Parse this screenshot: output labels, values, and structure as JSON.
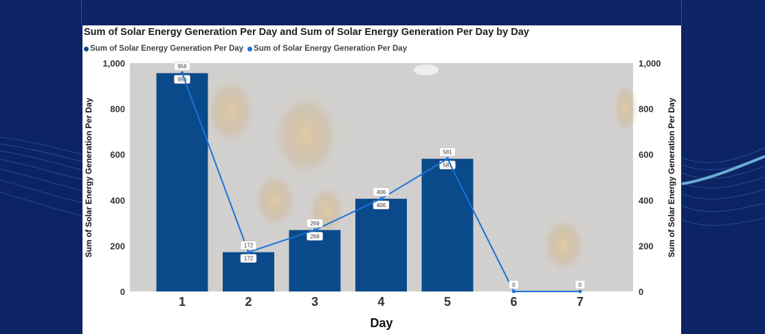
{
  "chart_data": {
    "type": "bar",
    "title": "Sum of Solar Energy Generation Per Day and Sum of Solar Energy Generation Per Day by Day",
    "xlabel": "Day",
    "ylabel": "Sum of Solar Energy Generation Per Day",
    "ylabel_right": "Sum of Solar Energy Generation Per Day",
    "categories": [
      "1",
      "2",
      "3",
      "4",
      "5",
      "6",
      "7"
    ],
    "ylim": [
      0,
      1000
    ],
    "y_ticks": [
      "0",
      "200",
      "400",
      "600",
      "800",
      "1,000"
    ],
    "series": [
      {
        "name": "Sum of Solar Energy Generation Per Day",
        "type": "bar",
        "axis": "left",
        "color": "#0b4a8a",
        "values": [
          956,
          172,
          269,
          406,
          581,
          0,
          0
        ],
        "labels": [
          "956",
          "172",
          "269",
          "406",
          "581",
          "",
          ""
        ]
      },
      {
        "name": "Sum of Solar Energy Generation Per Day",
        "type": "line",
        "axis": "right",
        "color": "#1a73d9",
        "values": [
          956,
          172,
          269,
          406,
          581,
          0,
          0
        ],
        "labels": [
          "956",
          "172",
          "269",
          "406",
          "581",
          "0",
          "0"
        ]
      }
    ],
    "legend": "top-left",
    "grid": false
  },
  "colors": {
    "page_bg": "#0d2464",
    "plot_bg": "#d9d9d9",
    "bar": "#0b4a8a",
    "line": "#1a73d9"
  }
}
